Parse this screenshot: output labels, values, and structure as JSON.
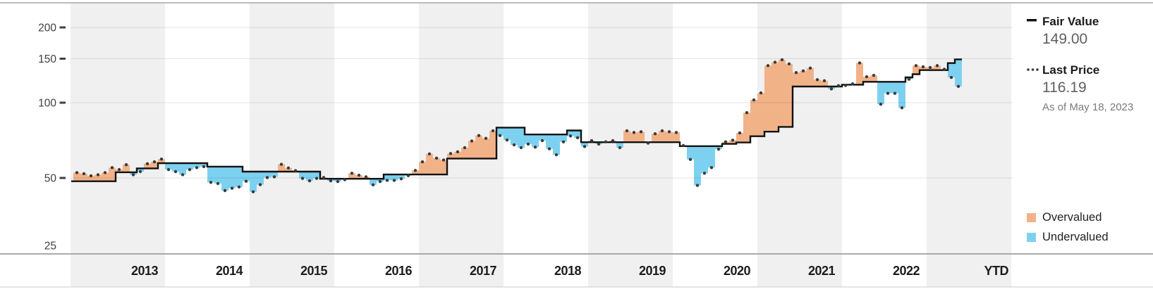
{
  "legend": {
    "fair_value": {
      "label": "Fair Value",
      "value": "149.00"
    },
    "last_price": {
      "label": "Last Price",
      "value": "116.19",
      "as_of": "As of May 18, 2023"
    },
    "overvalued_label": "Overvalued",
    "undervalued_label": "Undervalued"
  },
  "colors": {
    "overvalued": "#f2b288",
    "undervalued": "#7dd1f0",
    "fair_value_line": "#111111",
    "price_dot": "#3b3b3b",
    "band_gray": "#f0f0f0",
    "gridline": "rgba(0,0,0,0.10)",
    "axis_line": "#8f8f8f",
    "top_line": "#a6a6a6",
    "bottom_line": "#d4d4d4"
  },
  "chart_data": {
    "type": "area",
    "subtype": "fair-value-vs-price-step-columns",
    "y_scale": "log",
    "y_ticks": [
      200,
      150,
      100,
      50,
      25
    ],
    "ylim": [
      25,
      250
    ],
    "x_tick_labels": [
      "2013",
      "2014",
      "2015",
      "2016",
      "2017",
      "2018",
      "2019",
      "2020",
      "2021",
      "2022",
      "YTD"
    ],
    "start_month": "2012-12",
    "end_month": "2023-05",
    "frequency": "monthly",
    "grid": "horizontal",
    "legend_position": "right",
    "series": [
      {
        "name": "Fair Value",
        "values": [
          48.5,
          48.5,
          48.5,
          48.5,
          48.5,
          48.5,
          52.7,
          52.7,
          52.7,
          54.6,
          54.6,
          54.6,
          57.3,
          57.3,
          57.3,
          57.3,
          57.3,
          57.3,
          57.3,
          55.5,
          55.5,
          55.5,
          55.5,
          55.5,
          53.0,
          53.0,
          53.0,
          53.0,
          53.0,
          53.0,
          53.0,
          53.0,
          53.0,
          53.0,
          53.0,
          49.6,
          49.6,
          49.6,
          49.6,
          49.6,
          49.6,
          49.6,
          49.6,
          49.6,
          51.6,
          51.6,
          51.6,
          51.6,
          51.6,
          51.6,
          51.6,
          51.6,
          51.6,
          59.8,
          59.8,
          59.8,
          59.8,
          59.8,
          59.8,
          59.8,
          79.5,
          79.5,
          79.5,
          79.5,
          74.6,
          74.6,
          74.6,
          74.6,
          74.6,
          74.6,
          77.4,
          77.4,
          69.5,
          69.5,
          69.5,
          69.5,
          69.5,
          69.5,
          69.5,
          69.5,
          69.5,
          69.5,
          69.5,
          69.5,
          69.5,
          69.5,
          67.0,
          67.0,
          67.0,
          67.0,
          67.0,
          67.0,
          68.4,
          68.4,
          69.3,
          69.3,
          73.4,
          73.4,
          76.6,
          76.6,
          80.0,
          80.0,
          116.1,
          116.1,
          116.1,
          116.1,
          116.1,
          116.1,
          116.1,
          118.0,
          118.0,
          118.0,
          121.2,
          121.2,
          121.2,
          121.2,
          121.2,
          121.2,
          126.3,
          130.0,
          135.0,
          135.0,
          135.0,
          135.0,
          144.0,
          149.0
        ]
      },
      {
        "name": "Last Price",
        "values": [
          52.5,
          52.0,
          51.0,
          51.5,
          52.5,
          55.0,
          54.0,
          56.5,
          51.5,
          53.0,
          57.0,
          58.0,
          59.5,
          54.0,
          53.0,
          51.5,
          54.0,
          55.0,
          55.5,
          48.0,
          47.5,
          44.5,
          45.5,
          46.0,
          48.5,
          44.0,
          47.0,
          50.2,
          50.5,
          56.7,
          54.8,
          53.5,
          49.8,
          48.7,
          49.8,
          50.2,
          48.7,
          48.4,
          49.2,
          52.2,
          51.3,
          50.5,
          46.9,
          48.4,
          48.9,
          48.9,
          49.6,
          51.1,
          53.6,
          58.0,
          62.4,
          60.0,
          59.0,
          62.6,
          63.6,
          66.1,
          70.3,
          73.9,
          72.0,
          77.2,
          73.9,
          70.9,
          67.8,
          66.1,
          68.3,
          66.4,
          70.5,
          65.4,
          61.9,
          69.7,
          73.6,
          72.4,
          66.8,
          70.5,
          68.3,
          69.7,
          70.5,
          66.1,
          77.2,
          76.0,
          76.5,
          68.9,
          75.1,
          77.2,
          76.5,
          76.0,
          67.4,
          59.3,
          46.7,
          52.2,
          55.0,
          65.2,
          69.7,
          70.8,
          75.7,
          91.2,
          102.6,
          109.4,
          140.7,
          145.2,
          148.5,
          143.0,
          132.0,
          134.0,
          137.5,
          123.6,
          122.4,
          113.5,
          117.0,
          117.2,
          119.0,
          144.3,
          127.0,
          128.6,
          98.6,
          109.0,
          109.0,
          95.4,
          124.1,
          140.7,
          139.2,
          138.3,
          140.7,
          136.1,
          126.2,
          116.19
        ]
      }
    ]
  }
}
